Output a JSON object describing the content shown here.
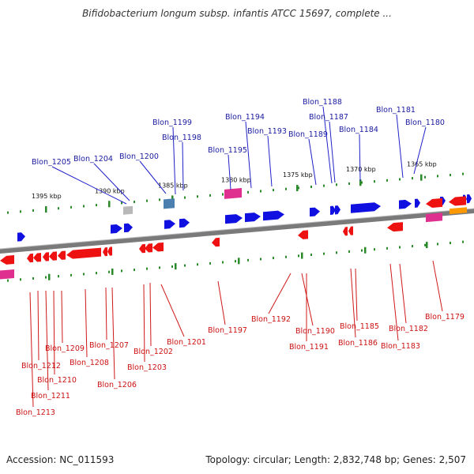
{
  "title": "Bifidobacterium longum subsp. infantis ATCC 15697, complete ...",
  "footer": {
    "accession": "Accession: NC_011593",
    "stats": "Topology: circular; Length: 2,832,748 bp; Genes: 2,507"
  },
  "colors": {
    "forward_gene": "#1010e0",
    "reverse_gene": "#ee1111",
    "rna_gene": "#e0308f",
    "misc_gene": "#ff9900",
    "tick": "#2a8a2a",
    "backbone": "#7a7a7a",
    "forward_label": "#1a1aa0",
    "reverse_label": "#cc1111"
  },
  "scale_ticks": [
    "1395 kbp",
    "1390 kbp",
    "1385 kbp",
    "1380 kbp",
    "1375 kbp",
    "1370 kbp",
    "1365 kbp"
  ],
  "forward_labels": [
    "Blon_1205",
    "Blon_1204",
    "Blon_1200",
    "Blon_1199",
    "Blon_1198",
    "Blon_1195",
    "Blon_1194",
    "Blon_1193",
    "Blon_1189",
    "Blon_1188",
    "Blon_1187",
    "Blon_1184",
    "Blon_1181",
    "Blon_1180"
  ],
  "reverse_labels": [
    "Blon_1213",
    "Blon_1212",
    "Blon_1211",
    "Blon_1210",
    "Blon_1209",
    "Blon_1208",
    "Blon_1207",
    "Blon_1206",
    "Blon_1203",
    "Blon_1202",
    "Blon_1201",
    "Blon_1197",
    "Blon_1192",
    "Blon_1191",
    "Blon_1190",
    "Blon_1186",
    "Blon_1185",
    "Blon_1183",
    "Blon_1182",
    "Blon_1179"
  ]
}
